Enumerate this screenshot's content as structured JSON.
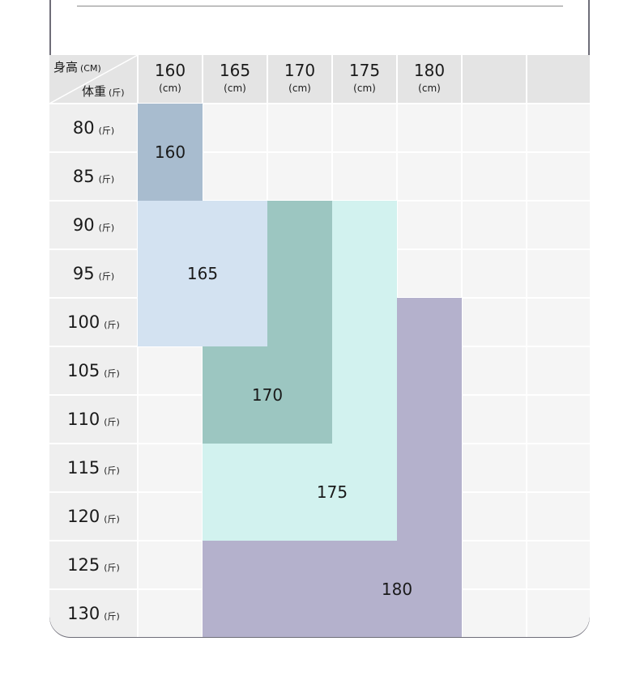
{
  "corner": {
    "height_label": "身高",
    "height_unit": "(CM)",
    "weight_label": "体重",
    "weight_unit": "(斤)"
  },
  "heights": [
    {
      "value": "160",
      "unit": "(cm)"
    },
    {
      "value": "165",
      "unit": "(cm)"
    },
    {
      "value": "170",
      "unit": "(cm)"
    },
    {
      "value": "175",
      "unit": "(cm)"
    },
    {
      "value": "180",
      "unit": "(cm)"
    },
    {
      "value": "",
      "unit": ""
    },
    {
      "value": "",
      "unit": ""
    }
  ],
  "weights": [
    {
      "value": "80",
      "unit": "(斤)"
    },
    {
      "value": "85",
      "unit": "(斤)"
    },
    {
      "value": "90",
      "unit": "(斤)"
    },
    {
      "value": "95",
      "unit": "(斤)"
    },
    {
      "value": "100",
      "unit": "(斤)"
    },
    {
      "value": "105",
      "unit": "(斤)"
    },
    {
      "value": "110",
      "unit": "(斤)"
    },
    {
      "value": "115",
      "unit": "(斤)"
    },
    {
      "value": "120",
      "unit": "(斤)"
    },
    {
      "value": "125",
      "unit": "(斤)"
    },
    {
      "value": "130",
      "unit": "(斤)"
    }
  ],
  "size_regions": [
    {
      "label": "160",
      "color": "#a8bccf",
      "cells": [
        [
          0,
          0
        ],
        [
          0,
          1
        ]
      ]
    },
    {
      "label": "165",
      "color": "#d3e2f1",
      "cells": [
        [
          0,
          2
        ],
        [
          0,
          3
        ],
        [
          0,
          4
        ],
        [
          1,
          2
        ],
        [
          1,
          3
        ],
        [
          1,
          4
        ]
      ]
    },
    {
      "label": "170",
      "color": "#9cc6c1",
      "cells": [
        [
          2,
          2
        ],
        [
          2,
          3
        ],
        [
          2,
          4
        ],
        [
          1,
          5
        ],
        [
          1,
          6
        ],
        [
          2,
          5
        ],
        [
          2,
          6
        ]
      ]
    },
    {
      "label": "175",
      "color": "#d2f2ef",
      "cells": [
        [
          3,
          2
        ],
        [
          3,
          3
        ],
        [
          3,
          4
        ],
        [
          3,
          5
        ],
        [
          3,
          6
        ],
        [
          1,
          7
        ],
        [
          1,
          8
        ],
        [
          2,
          7
        ],
        [
          2,
          8
        ],
        [
          3,
          7
        ],
        [
          3,
          8
        ]
      ]
    },
    {
      "label": "180",
      "color": "#b4b1cc",
      "cells": [
        [
          4,
          4
        ],
        [
          4,
          5
        ],
        [
          4,
          6
        ],
        [
          4,
          7
        ],
        [
          4,
          8
        ],
        [
          1,
          9
        ],
        [
          1,
          10
        ],
        [
          2,
          9
        ],
        [
          2,
          10
        ],
        [
          3,
          9
        ],
        [
          3,
          10
        ],
        [
          4,
          9
        ],
        [
          4,
          10
        ]
      ]
    }
  ]
}
